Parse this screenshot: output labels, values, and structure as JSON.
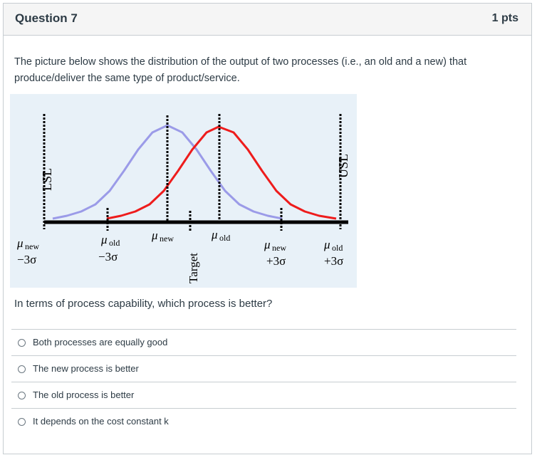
{
  "question": {
    "title": "Question 7",
    "points": "1 pts",
    "stem": "The picture below shows the distribution of the output of two processes (i.e., an old and a new) that produce/deliver the same type of product/service.",
    "prompt": "In terms of process capability, which process is better?"
  },
  "figure": {
    "lsl_label": "LSL",
    "usl_label": "USL",
    "target_label": "Target",
    "labels": {
      "mu_new_minus": [
        "μ",
        "new",
        "−3σ"
      ],
      "mu_old_minus": [
        "μ",
        "old",
        "−3σ"
      ],
      "mu_new": [
        "μ",
        "new"
      ],
      "mu_old": [
        "μ",
        "old"
      ],
      "mu_new_plus": [
        "μ",
        "new",
        "+3σ"
      ],
      "mu_old_plus": [
        "μ",
        "old",
        "+3σ"
      ]
    },
    "colors": {
      "old_curve": "#ee1c1c",
      "new_curve": "#9b9be8",
      "background": "#e8f1f8"
    }
  },
  "answers": [
    {
      "label": "Both processes are equally good",
      "selected": false
    },
    {
      "label": "The new process is better",
      "selected": false
    },
    {
      "label": "The old process is better",
      "selected": false
    },
    {
      "label": "It depends on the cost constant k",
      "selected": false
    }
  ]
}
